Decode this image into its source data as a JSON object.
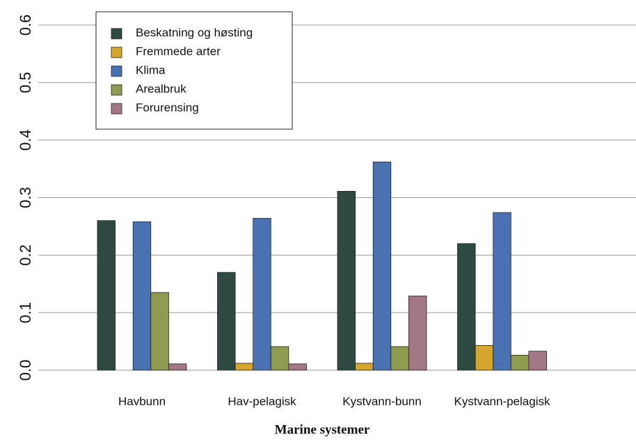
{
  "chart_data": {
    "type": "bar",
    "xlabel": "Marine systemer",
    "categories": [
      "Havbunn",
      "Hav-pelagisk",
      "Kystvann-bunn",
      "Kystvann-pelagisk"
    ],
    "series": [
      {
        "name": "Beskatning og høsting",
        "color": "#2e4a42",
        "values": [
          0.26,
          0.17,
          0.311,
          0.22
        ]
      },
      {
        "name": "Fremmede arter",
        "color": "#d4a72c",
        "values": [
          0,
          0.012,
          0.012,
          0.043
        ]
      },
      {
        "name": "Klima",
        "color": "#4a72b2",
        "values": [
          0.258,
          0.264,
          0.362,
          0.274
        ]
      },
      {
        "name": "Arealbruk",
        "color": "#8f9b4e",
        "values": [
          0.135,
          0.041,
          0.041,
          0.026
        ]
      },
      {
        "name": "Forurensing",
        "color": "#a47787",
        "values": [
          0.011,
          0.011,
          0.129,
          0.033
        ]
      }
    ],
    "ylim": [
      0,
      0.6
    ],
    "yticks": [
      {
        "value": 0,
        "label": "0.0"
      },
      0.1,
      0.2,
      0.3,
      0.4,
      0.5,
      0.6
    ],
    "grid": true,
    "legend": "top-left"
  }
}
